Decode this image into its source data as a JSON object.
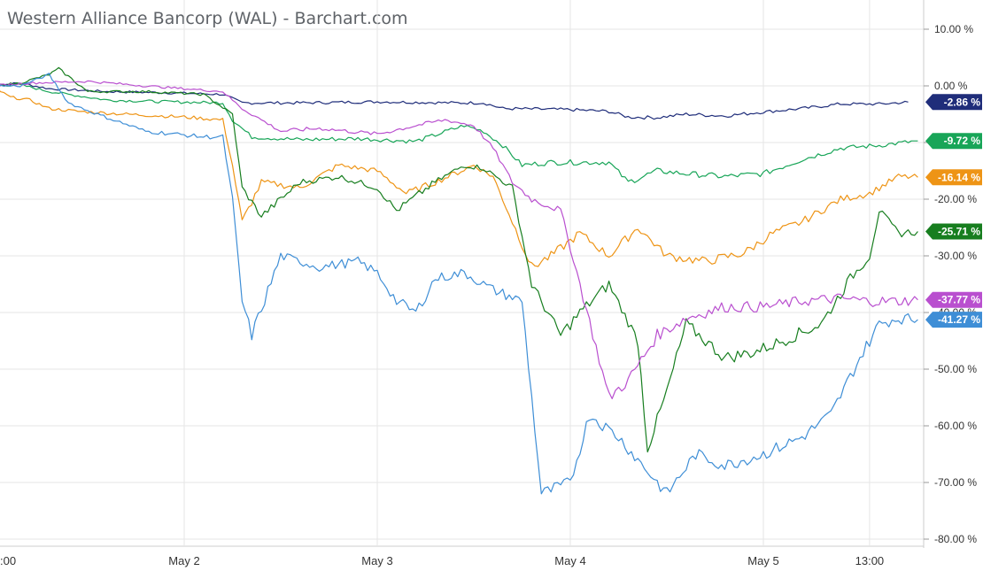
{
  "chart_data": {
    "type": "line",
    "title": "Western Alliance Bancorp (WAL) - Barchart.com",
    "xlabel": "",
    "ylabel": "",
    "ylim": [
      -80,
      10
    ],
    "y_ticks": [
      "10.00 %",
      "0.00 %",
      "-10.00 %",
      "-20.00 %",
      "-30.00 %",
      "-40.00 %",
      "-50.00 %",
      "-60.00 %",
      "-70.00 %",
      "-80.00 %"
    ],
    "y_tick_values": [
      10,
      0,
      -10,
      -20,
      -30,
      -40,
      -50,
      -60,
      -70,
      -80
    ],
    "x_ticks": [
      {
        "label": ":00",
        "t": 0
      },
      {
        "label": "May 2",
        "t": 1
      },
      {
        "label": "May 3",
        "t": 2
      },
      {
        "label": "May 4",
        "t": 3
      },
      {
        "label": "May 5",
        "t": 4
      },
      {
        "label": "13:00",
        "t": 4.55
      }
    ],
    "x_range": [
      0,
      4.9
    ],
    "grid": true,
    "series": [
      {
        "color": "#1f2d7a",
        "last_label": "-2.86 %",
        "last": -2.86,
        "points": [
          [
            0,
            0
          ],
          [
            0.15,
            0.5
          ],
          [
            0.3,
            -0.5
          ],
          [
            0.6,
            -1
          ],
          [
            0.9,
            -1.2
          ],
          [
            1.2,
            -1.5
          ],
          [
            1.3,
            -3
          ],
          [
            1.6,
            -3
          ],
          [
            2,
            -2.8
          ],
          [
            2.4,
            -3
          ],
          [
            2.55,
            -3
          ],
          [
            2.65,
            -4
          ],
          [
            3.0,
            -4.2
          ],
          [
            3.2,
            -4.5
          ],
          [
            3.3,
            -5.5
          ],
          [
            3.45,
            -5.6
          ],
          [
            3.6,
            -5
          ],
          [
            3.8,
            -5.3
          ],
          [
            4.0,
            -4.6
          ],
          [
            4.2,
            -4
          ],
          [
            4.4,
            -3.2
          ],
          [
            4.6,
            -3.2
          ],
          [
            4.75,
            -2.86
          ]
        ]
      },
      {
        "color": "#18a558",
        "last_label": "-9.72 %",
        "last": -9.72,
        "points": [
          [
            0,
            0
          ],
          [
            0.15,
            0.2
          ],
          [
            0.3,
            -1
          ],
          [
            0.6,
            -2.5
          ],
          [
            0.9,
            -2.8
          ],
          [
            1.2,
            -3
          ],
          [
            1.25,
            -6
          ],
          [
            1.35,
            -9
          ],
          [
            1.6,
            -9.5
          ],
          [
            1.9,
            -9.3
          ],
          [
            2.2,
            -9.8
          ],
          [
            2.45,
            -7
          ],
          [
            2.55,
            -8
          ],
          [
            2.65,
            -10.5
          ],
          [
            2.75,
            -14
          ],
          [
            2.9,
            -13.5
          ],
          [
            3.2,
            -13.5
          ],
          [
            3.3,
            -17
          ],
          [
            3.45,
            -15
          ],
          [
            3.6,
            -15.5
          ],
          [
            3.8,
            -16
          ],
          [
            4.0,
            -15.5
          ],
          [
            4.2,
            -13
          ],
          [
            4.4,
            -11
          ],
          [
            4.6,
            -10.5
          ],
          [
            4.8,
            -9.72
          ]
        ]
      },
      {
        "color": "#ee9415",
        "last_label": "-16.14 %",
        "last": -16.14,
        "points": [
          [
            0,
            0
          ],
          [
            0.1,
            -2
          ],
          [
            0.2,
            -2.5
          ],
          [
            0.3,
            -4
          ],
          [
            0.45,
            -4.5
          ],
          [
            0.7,
            -5
          ],
          [
            1.0,
            -5.5
          ],
          [
            1.2,
            -6
          ],
          [
            1.25,
            -14
          ],
          [
            1.3,
            -24
          ],
          [
            1.4,
            -17
          ],
          [
            1.6,
            -18
          ],
          [
            1.8,
            -14
          ],
          [
            2.0,
            -15
          ],
          [
            2.15,
            -19
          ],
          [
            2.3,
            -17
          ],
          [
            2.5,
            -14
          ],
          [
            2.6,
            -16
          ],
          [
            2.7,
            -24
          ],
          [
            2.8,
            -32
          ],
          [
            2.9,
            -30
          ],
          [
            3.05,
            -26
          ],
          [
            3.2,
            -30
          ],
          [
            3.35,
            -25
          ],
          [
            3.5,
            -30
          ],
          [
            3.7,
            -31
          ],
          [
            3.9,
            -29.5
          ],
          [
            4.05,
            -26
          ],
          [
            4.2,
            -24
          ],
          [
            4.4,
            -20
          ],
          [
            4.55,
            -19
          ],
          [
            4.7,
            -16
          ],
          [
            4.8,
            -16.14
          ]
        ]
      },
      {
        "color": "#177e1f",
        "last_label": "-25.71 %",
        "last": -25.71,
        "points": [
          [
            0,
            0
          ],
          [
            0.15,
            0.5
          ],
          [
            0.3,
            2
          ],
          [
            0.35,
            3
          ],
          [
            0.5,
            -1
          ],
          [
            0.8,
            -1
          ],
          [
            1.1,
            -1.5
          ],
          [
            1.25,
            -5
          ],
          [
            1.3,
            -18
          ],
          [
            1.4,
            -23
          ],
          [
            1.6,
            -17
          ],
          [
            1.8,
            -16
          ],
          [
            2.0,
            -18
          ],
          [
            2.1,
            -22
          ],
          [
            2.3,
            -17
          ],
          [
            2.45,
            -14
          ],
          [
            2.55,
            -14.5
          ],
          [
            2.7,
            -18
          ],
          [
            2.8,
            -35
          ],
          [
            2.95,
            -44
          ],
          [
            3.05,
            -40
          ],
          [
            3.2,
            -35
          ],
          [
            3.35,
            -45
          ],
          [
            3.4,
            -64
          ],
          [
            3.5,
            -54
          ],
          [
            3.6,
            -42
          ],
          [
            3.7,
            -45
          ],
          [
            3.8,
            -48
          ],
          [
            3.95,
            -47
          ],
          [
            4.1,
            -45
          ],
          [
            4.3,
            -42
          ],
          [
            4.45,
            -34
          ],
          [
            4.55,
            -30
          ],
          [
            4.6,
            -22
          ],
          [
            4.7,
            -26
          ],
          [
            4.8,
            -25.71
          ]
        ]
      },
      {
        "color": "#b94fcf",
        "last_label": "-37.77 %",
        "last": -37.77,
        "points": [
          [
            0,
            0
          ],
          [
            0.2,
            0.5
          ],
          [
            0.5,
            0.8
          ],
          [
            0.8,
            0
          ],
          [
            1.2,
            -1
          ],
          [
            1.3,
            -4
          ],
          [
            1.5,
            -8
          ],
          [
            1.7,
            -7.5
          ],
          [
            2.0,
            -8.5
          ],
          [
            2.2,
            -7
          ],
          [
            2.35,
            -6
          ],
          [
            2.5,
            -7
          ],
          [
            2.6,
            -11
          ],
          [
            2.7,
            -17
          ],
          [
            2.8,
            -20
          ],
          [
            2.95,
            -22
          ],
          [
            3.05,
            -35
          ],
          [
            3.2,
            -55
          ],
          [
            3.3,
            -52
          ],
          [
            3.45,
            -44
          ],
          [
            3.6,
            -41
          ],
          [
            3.8,
            -39
          ],
          [
            4.0,
            -39
          ],
          [
            4.2,
            -38
          ],
          [
            4.4,
            -37.5
          ],
          [
            4.55,
            -38
          ],
          [
            4.7,
            -38
          ],
          [
            4.8,
            -37.77
          ]
        ]
      },
      {
        "color": "#3e8ed6",
        "last_label": "-41.27 %",
        "last": -41.27,
        "points": [
          [
            0,
            0
          ],
          [
            0.15,
            0
          ],
          [
            0.3,
            2
          ],
          [
            0.4,
            -3
          ],
          [
            0.55,
            -5
          ],
          [
            0.8,
            -8
          ],
          [
            1.1,
            -9
          ],
          [
            1.2,
            -9
          ],
          [
            1.25,
            -20
          ],
          [
            1.3,
            -38
          ],
          [
            1.35,
            -44
          ],
          [
            1.5,
            -30
          ],
          [
            1.7,
            -32
          ],
          [
            1.9,
            -31
          ],
          [
            2.0,
            -33
          ],
          [
            2.1,
            -38
          ],
          [
            2.2,
            -40
          ],
          [
            2.3,
            -34
          ],
          [
            2.45,
            -33
          ],
          [
            2.6,
            -36
          ],
          [
            2.75,
            -38
          ],
          [
            2.85,
            -72
          ],
          [
            3.0,
            -70
          ],
          [
            3.1,
            -58
          ],
          [
            3.25,
            -62
          ],
          [
            3.4,
            -68
          ],
          [
            3.5,
            -72
          ],
          [
            3.65,
            -65
          ],
          [
            3.8,
            -67
          ],
          [
            4.0,
            -65
          ],
          [
            4.2,
            -62
          ],
          [
            4.35,
            -58
          ],
          [
            4.5,
            -48
          ],
          [
            4.6,
            -42
          ],
          [
            4.7,
            -41
          ],
          [
            4.8,
            -41.27
          ]
        ]
      }
    ]
  }
}
